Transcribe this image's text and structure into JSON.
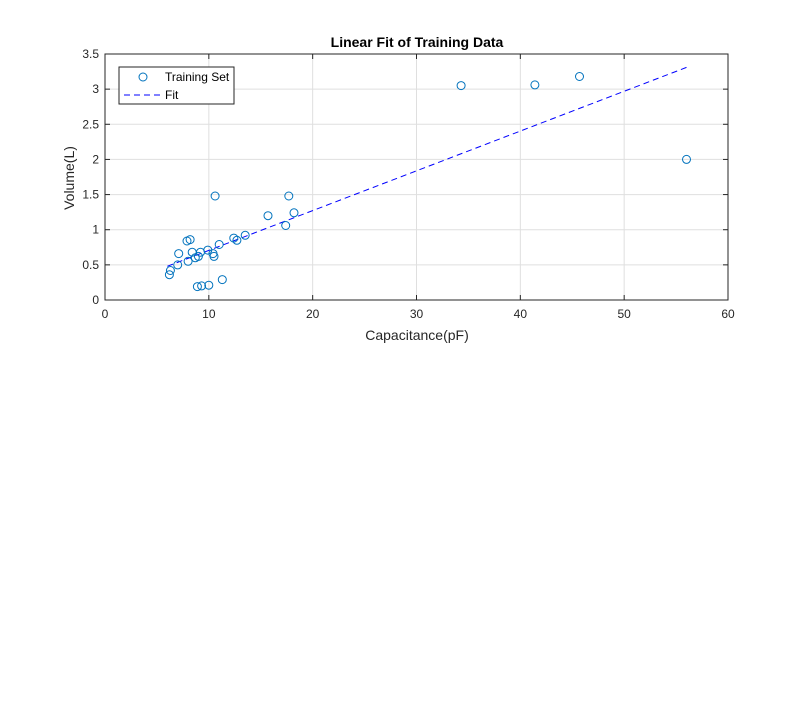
{
  "chart_data": {
    "type": "scatter",
    "title": "Linear Fit of Training Data",
    "xlabel": "Capacitance(pF)",
    "ylabel": "Volume(L)",
    "xlim": [
      0,
      60
    ],
    "ylim": [
      0,
      3.5
    ],
    "xticks": [
      0,
      10,
      20,
      30,
      40,
      50,
      60
    ],
    "yticks": [
      0,
      0.5,
      1,
      1.5,
      2,
      2.5,
      3,
      3.5
    ],
    "xtick_labels": [
      "0",
      "10",
      "20",
      "30",
      "40",
      "50",
      "60"
    ],
    "ytick_labels": [
      "0",
      "0.5",
      "1",
      "1.5",
      "2",
      "2.5",
      "3",
      "3.5"
    ],
    "grid": true,
    "legend_position": "top-left",
    "series": [
      {
        "name": "Training Set",
        "kind": "scatter",
        "marker": "circle",
        "color": "#0072BD",
        "points": [
          [
            6.2,
            0.36
          ],
          [
            6.3,
            0.42
          ],
          [
            7.0,
            0.5
          ],
          [
            7.1,
            0.66
          ],
          [
            7.9,
            0.84
          ],
          [
            8.2,
            0.86
          ],
          [
            8.0,
            0.55
          ],
          [
            8.4,
            0.68
          ],
          [
            8.7,
            0.6
          ],
          [
            9.0,
            0.62
          ],
          [
            8.9,
            0.19
          ],
          [
            9.3,
            0.2
          ],
          [
            9.2,
            0.68
          ],
          [
            9.9,
            0.71
          ],
          [
            10.0,
            0.21
          ],
          [
            10.4,
            0.66
          ],
          [
            10.5,
            0.62
          ],
          [
            11.0,
            0.79
          ],
          [
            11.3,
            0.29
          ],
          [
            10.6,
            1.48
          ],
          [
            12.4,
            0.88
          ],
          [
            12.7,
            0.85
          ],
          [
            13.5,
            0.92
          ],
          [
            15.7,
            1.2
          ],
          [
            17.4,
            1.06
          ],
          [
            17.7,
            1.48
          ],
          [
            18.2,
            1.24
          ],
          [
            34.3,
            3.05
          ],
          [
            41.4,
            3.06
          ],
          [
            45.7,
            3.18
          ],
          [
            56.0,
            2.0
          ]
        ]
      },
      {
        "name": "Fit",
        "kind": "line",
        "style": "dashed",
        "color": "#0000FF",
        "points": [
          [
            6.0,
            0.48
          ],
          [
            56.0,
            3.31
          ]
        ]
      }
    ]
  }
}
